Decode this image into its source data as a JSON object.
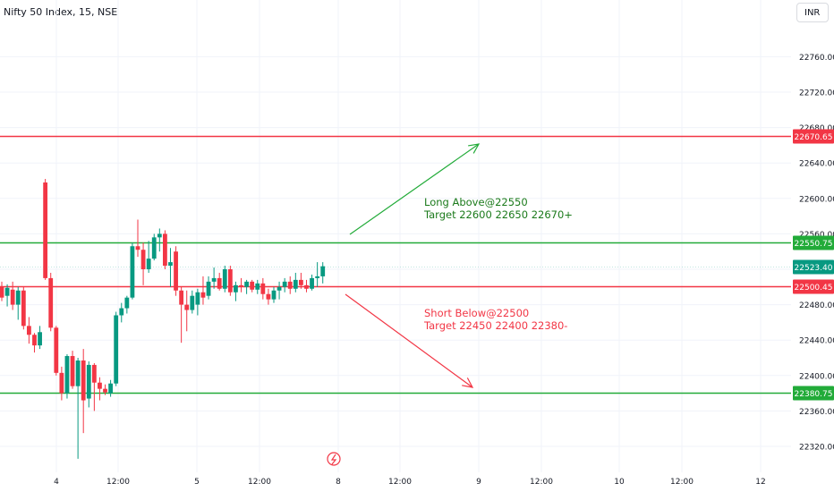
{
  "header": {
    "title": "Nifty 50 Index, 15, NSE",
    "currency_button": "INR"
  },
  "chart_data": {
    "type": "candlestick",
    "y_axis": {
      "ticks": [
        "22320.00",
        "22360.00",
        "22400.00",
        "22440.00",
        "22480.00",
        "22520.00",
        "22560.00",
        "22600.00",
        "22640.00",
        "22680.00",
        "22720.00",
        "22760.00"
      ],
      "tick_values": [
        22320,
        22360,
        22400,
        22440,
        22480,
        22520,
        22560,
        22600,
        22640,
        22680,
        22720,
        22760
      ]
    },
    "x_axis": {
      "labels": [
        "4",
        "12:00",
        "5",
        "12:00",
        "8",
        "12:00",
        "9",
        "12:00",
        "10",
        "12:00",
        "12"
      ]
    },
    "levels": [
      {
        "value": 22670.65,
        "label": "22670.65",
        "color": "#f23645"
      },
      {
        "value": 22550.75,
        "label": "22550.75",
        "color": "#22ab39"
      },
      {
        "value": 22523.4,
        "label": "22523.40",
        "color": "#089981",
        "kind": "last-price"
      },
      {
        "value": 22500.45,
        "label": "22500.45",
        "color": "#f23645"
      },
      {
        "value": 22380.75,
        "label": "22380.75",
        "color": "#22ab39"
      }
    ],
    "annotations": [
      {
        "lines": [
          "Long Above@22550",
          "Target 22600 22650 22670+"
        ],
        "color": "#1b7a1b"
      },
      {
        "lines": [
          "Short Below@22500",
          "Target 22450 22400 22380-"
        ],
        "color": "#f23645"
      }
    ],
    "candles": [
      {
        "o": 22500,
        "h": 22506,
        "l": 22484,
        "c": 22488
      },
      {
        "o": 22490,
        "h": 22503,
        "l": 22478,
        "c": 22499
      },
      {
        "o": 22497,
        "h": 22506,
        "l": 22474,
        "c": 22480
      },
      {
        "o": 22480,
        "h": 22500,
        "l": 22463,
        "c": 22496
      },
      {
        "o": 22496,
        "h": 22500,
        "l": 22452,
        "c": 22456
      },
      {
        "o": 22456,
        "h": 22466,
        "l": 22436,
        "c": 22446
      },
      {
        "o": 22446,
        "h": 22448,
        "l": 22426,
        "c": 22434
      },
      {
        "o": 22434,
        "h": 22456,
        "l": 22430,
        "c": 22449
      },
      {
        "o": 22618,
        "h": 22622,
        "l": 22508,
        "c": 22510
      },
      {
        "o": 22510,
        "h": 22516,
        "l": 22450,
        "c": 22454
      },
      {
        "o": 22454,
        "h": 22456,
        "l": 22400,
        "c": 22403
      },
      {
        "o": 22403,
        "h": 22410,
        "l": 22372,
        "c": 22380
      },
      {
        "o": 22380,
        "h": 22424,
        "l": 22374,
        "c": 22422
      },
      {
        "o": 22422,
        "h": 22428,
        "l": 22385,
        "c": 22388
      },
      {
        "o": 22388,
        "h": 22420,
        "l": 22306,
        "c": 22417
      },
      {
        "o": 22417,
        "h": 22430,
        "l": 22335,
        "c": 22372
      },
      {
        "o": 22374,
        "h": 22416,
        "l": 22364,
        "c": 22412
      },
      {
        "o": 22412,
        "h": 22414,
        "l": 22360,
        "c": 22392
      },
      {
        "o": 22392,
        "h": 22398,
        "l": 22372,
        "c": 22385
      },
      {
        "o": 22385,
        "h": 22390,
        "l": 22378,
        "c": 22381
      },
      {
        "o": 22380,
        "h": 22395,
        "l": 22376,
        "c": 22391
      },
      {
        "o": 22391,
        "h": 22472,
        "l": 22388,
        "c": 22468
      },
      {
        "o": 22468,
        "h": 22482,
        "l": 22460,
        "c": 22476
      },
      {
        "o": 22476,
        "h": 22490,
        "l": 22470,
        "c": 22488
      },
      {
        "o": 22488,
        "h": 22550,
        "l": 22486,
        "c": 22546
      },
      {
        "o": 22546,
        "h": 22576,
        "l": 22534,
        "c": 22542
      },
      {
        "o": 22542,
        "h": 22550,
        "l": 22502,
        "c": 22520
      },
      {
        "o": 22520,
        "h": 22552,
        "l": 22516,
        "c": 22532
      },
      {
        "o": 22532,
        "h": 22560,
        "l": 22530,
        "c": 22556
      },
      {
        "o": 22556,
        "h": 22566,
        "l": 22540,
        "c": 22560
      },
      {
        "o": 22560,
        "h": 22564,
        "l": 22520,
        "c": 22524
      },
      {
        "o": 22524,
        "h": 22544,
        "l": 22500,
        "c": 22528
      },
      {
        "o": 22540,
        "h": 22546,
        "l": 22490,
        "c": 22496
      },
      {
        "o": 22496,
        "h": 22500,
        "l": 22437,
        "c": 22480
      },
      {
        "o": 22480,
        "h": 22496,
        "l": 22450,
        "c": 22474
      },
      {
        "o": 22474,
        "h": 22496,
        "l": 22470,
        "c": 22490
      },
      {
        "o": 22480,
        "h": 22498,
        "l": 22468,
        "c": 22494
      },
      {
        "o": 22494,
        "h": 22512,
        "l": 22480,
        "c": 22488
      },
      {
        "o": 22490,
        "h": 22512,
        "l": 22486,
        "c": 22506
      },
      {
        "o": 22506,
        "h": 22522,
        "l": 22498,
        "c": 22510
      },
      {
        "o": 22510,
        "h": 22516,
        "l": 22496,
        "c": 22498
      },
      {
        "o": 22498,
        "h": 22524,
        "l": 22494,
        "c": 22520
      },
      {
        "o": 22520,
        "h": 22524,
        "l": 22490,
        "c": 22494
      },
      {
        "o": 22494,
        "h": 22506,
        "l": 22484,
        "c": 22502
      },
      {
        "o": 22502,
        "h": 22510,
        "l": 22494,
        "c": 22500
      },
      {
        "o": 22500,
        "h": 22508,
        "l": 22492,
        "c": 22506
      },
      {
        "o": 22506,
        "h": 22508,
        "l": 22494,
        "c": 22497
      },
      {
        "o": 22497,
        "h": 22508,
        "l": 22492,
        "c": 22504
      },
      {
        "o": 22504,
        "h": 22510,
        "l": 22486,
        "c": 22492
      },
      {
        "o": 22492,
        "h": 22498,
        "l": 22480,
        "c": 22486
      },
      {
        "o": 22486,
        "h": 22500,
        "l": 22482,
        "c": 22496
      },
      {
        "o": 22496,
        "h": 22506,
        "l": 22486,
        "c": 22500
      },
      {
        "o": 22500,
        "h": 22510,
        "l": 22494,
        "c": 22506
      },
      {
        "o": 22506,
        "h": 22512,
        "l": 22492,
        "c": 22498
      },
      {
        "o": 22498,
        "h": 22516,
        "l": 22494,
        "c": 22508
      },
      {
        "o": 22508,
        "h": 22516,
        "l": 22498,
        "c": 22502
      },
      {
        "o": 22502,
        "h": 22508,
        "l": 22494,
        "c": 22498
      },
      {
        "o": 22498,
        "h": 22514,
        "l": 22496,
        "c": 22510
      },
      {
        "o": 22510,
        "h": 22528,
        "l": 22500,
        "c": 22512
      },
      {
        "o": 22512,
        "h": 22528,
        "l": 22504,
        "c": 22523.4
      }
    ]
  }
}
